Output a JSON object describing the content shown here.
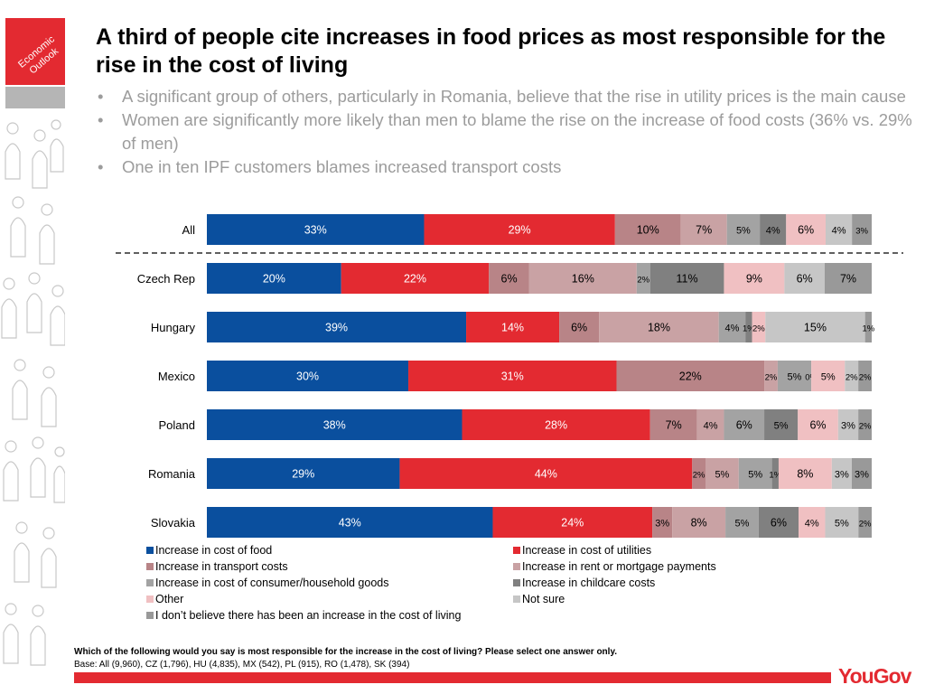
{
  "badge": {
    "line1": "Economic",
    "line2": "Outlook"
  },
  "title": "A third of people cite increases in food prices as most responsible for the rise in the cost of living",
  "bullets": [
    "A significant group of others, particularly in Romania, believe that the rise in utility prices is the main cause",
    "Women are significantly more likely than men to blame the rise on the increase of food costs (36% vs. 29% of men)",
    "One in ten IPF customers blames increased transport costs"
  ],
  "footnote": {
    "question": "Which of the following would you say is most responsible for the increase in the cost of living? Please select one answer only.",
    "base": "Base: All (9,960), CZ (1,796), HU (4,835), MX (542), PL (915), RO (1,478), SK (394)"
  },
  "logo": "YouGov",
  "colors": {
    "brand_red": "#e32a31",
    "segments": [
      "#0a4f9e",
      "#e32a31",
      "#b88487",
      "#c9a2a4",
      "#a3a3a3",
      "#808080",
      "#f0c0c2",
      "#c6c6c6",
      "#999999"
    ],
    "label_colors": [
      "#ffffff",
      "#ffffff",
      "#000000",
      "#000000",
      "#000000",
      "#000000",
      "#000000",
      "#000000",
      "#000000"
    ]
  },
  "chart_data": {
    "type": "bar",
    "orientation": "horizontal",
    "stacked": true,
    "unit": "%",
    "categories": [
      "All",
      "Czech Rep",
      "Hungary",
      "Mexico",
      "Poland",
      "Romania",
      "Slovakia"
    ],
    "separator_after": "All",
    "series": [
      {
        "name": "Increase in cost of food",
        "values": [
          33,
          20,
          39,
          30,
          38,
          29,
          43
        ],
        "labels": [
          "33%",
          "20%",
          "39%",
          "30%",
          "38%",
          "29%",
          "43%"
        ]
      },
      {
        "name": "Increase in cost of utilities",
        "values": [
          29,
          22,
          14,
          31,
          28,
          44,
          24
        ],
        "labels": [
          "29%",
          "22%",
          "14%",
          "31%",
          "28%",
          "44%",
          "24%"
        ]
      },
      {
        "name": "Increase in transport costs",
        "values": [
          10,
          6,
          6,
          22,
          7,
          2,
          3
        ],
        "labels": [
          "10%",
          "6%",
          "6%",
          "22%",
          "7%",
          "2%",
          "3%"
        ]
      },
      {
        "name": "Increase in rent or mortgage payments",
        "values": [
          7,
          16,
          18,
          2,
          4,
          5,
          8
        ],
        "labels": [
          "7%",
          "16%",
          "18%",
          "2%",
          "4%",
          "5%",
          "8%"
        ]
      },
      {
        "name": "Increase in cost of consumer/household goods",
        "values": [
          5,
          2,
          4,
          5,
          6,
          5,
          5
        ],
        "labels": [
          "5%",
          "2%",
          "4%",
          "5%",
          "6%",
          "5%",
          "5%"
        ]
      },
      {
        "name": "Increase in childcare costs",
        "values": [
          4,
          11,
          1,
          0,
          5,
          1,
          6
        ],
        "labels": [
          "4%",
          "11%",
          "1%",
          "0%",
          "5%",
          "1%",
          "6%"
        ]
      },
      {
        "name": "Other",
        "values": [
          6,
          9,
          2,
          5,
          6,
          8,
          4
        ],
        "labels": [
          "6%",
          "9%",
          "2%",
          "5%",
          "6%",
          "8%",
          "4%"
        ]
      },
      {
        "name": "Not sure",
        "values": [
          4,
          6,
          15,
          2,
          3,
          3,
          5
        ],
        "labels": [
          "4%",
          "6%",
          "15%",
          "2%",
          "3%",
          "3%",
          "5%"
        ]
      },
      {
        "name": "I don’t believe there has been an increase in the cost of living",
        "values": [
          3,
          7,
          1,
          2,
          2,
          3,
          2
        ],
        "labels": [
          "3%",
          "7%",
          "1%",
          "2%",
          "2%",
          "3%",
          "2%"
        ]
      }
    ]
  }
}
